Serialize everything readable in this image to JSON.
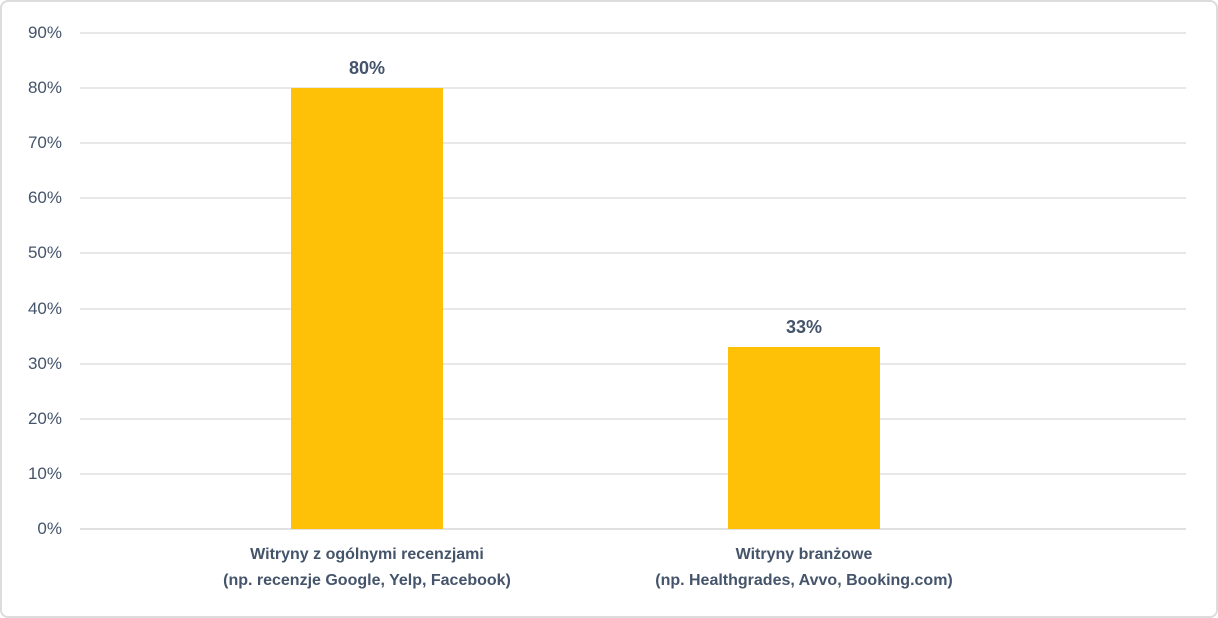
{
  "chart_data": {
    "type": "bar",
    "title": "",
    "xlabel": "",
    "ylabel": "",
    "categories": [
      "Witryny z ogólnymi recenzjami (np. recenzje Google, Yelp, Facebook)",
      "Witryny branżowe (np. Healthgrades, Avvo, Booking.com)"
    ],
    "categories_display": [
      {
        "line1": "Witryny z ogólnymi recenzjami",
        "line2": "(np. recenzje Google, Yelp, Facebook)"
      },
      {
        "line1": "Witryny branżowe",
        "line2": "(np. Healthgrades, Avvo, Booking.com)"
      }
    ],
    "values": [
      80,
      33
    ],
    "data_labels": [
      "80%",
      "33%"
    ],
    "ylim": [
      0,
      90
    ],
    "yticks": [
      0,
      10,
      20,
      30,
      40,
      50,
      60,
      70,
      80,
      90
    ],
    "ytick_labels": [
      "0%",
      "10%",
      "20%",
      "30%",
      "40%",
      "50%",
      "60%",
      "70%",
      "80%",
      "90%"
    ],
    "grid": "horizontal",
    "legend": "none",
    "colors": {
      "bar": "#ffc107",
      "text": "#44546a",
      "gridline": "#e8e8e8",
      "frame_border": "#dcdcdc",
      "background": "#ffffff"
    }
  }
}
